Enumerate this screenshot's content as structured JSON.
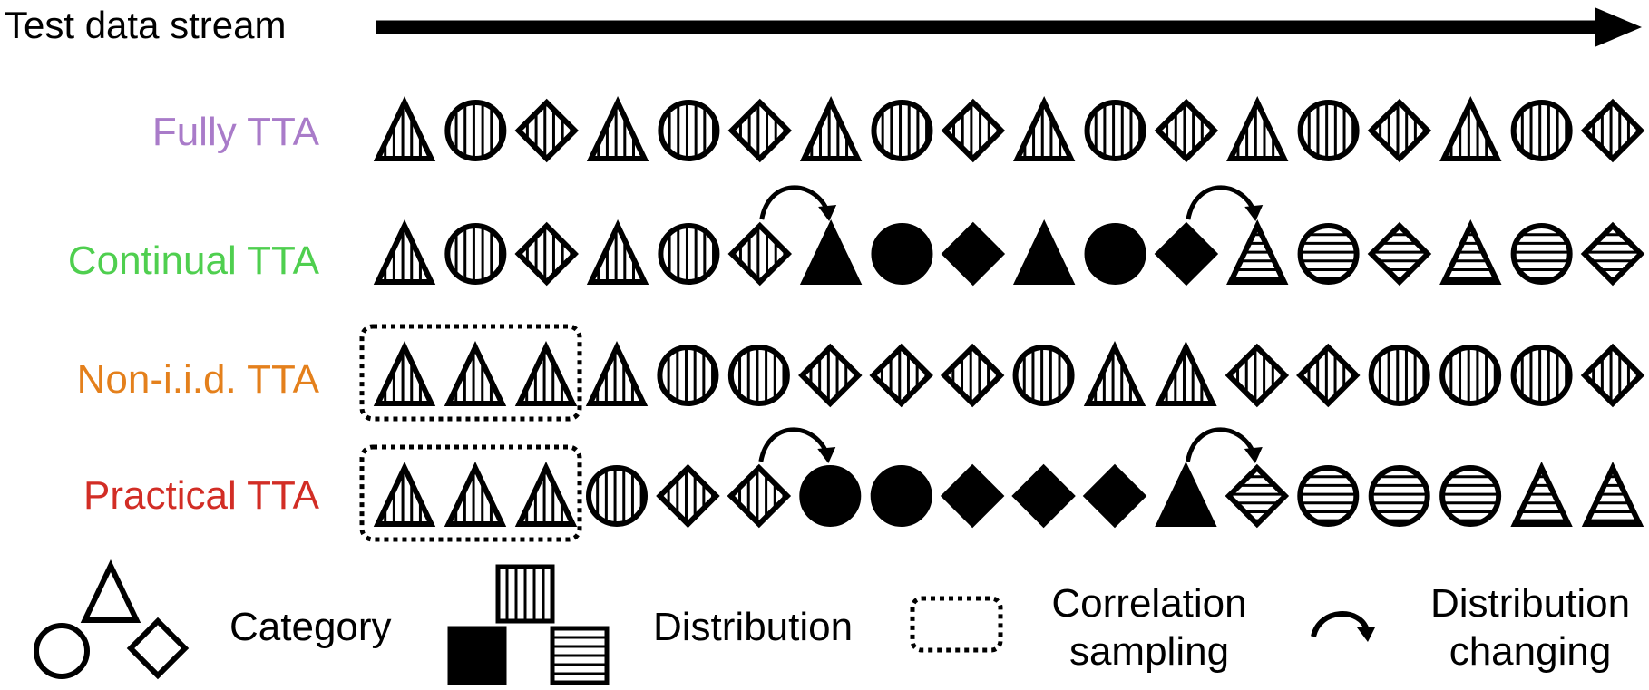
{
  "title": "Test data stream",
  "colors": {
    "stroke": "#000000",
    "fully": "#a97bc9",
    "continual": "#4fcf4f",
    "noniid": "#e4801c",
    "practical": "#d22d25"
  },
  "rows": [
    {
      "key": "fully",
      "label": "Fully TTA",
      "color_key": "fully",
      "items": [
        {
          "shape": "triangle",
          "fill": "vertical"
        },
        {
          "shape": "circle",
          "fill": "vertical"
        },
        {
          "shape": "diamond",
          "fill": "vertical"
        },
        {
          "shape": "triangle",
          "fill": "vertical"
        },
        {
          "shape": "circle",
          "fill": "vertical"
        },
        {
          "shape": "diamond",
          "fill": "vertical"
        },
        {
          "shape": "triangle",
          "fill": "vertical"
        },
        {
          "shape": "circle",
          "fill": "vertical"
        },
        {
          "shape": "diamond",
          "fill": "vertical"
        },
        {
          "shape": "triangle",
          "fill": "vertical"
        },
        {
          "shape": "circle",
          "fill": "vertical"
        },
        {
          "shape": "diamond",
          "fill": "vertical"
        },
        {
          "shape": "triangle",
          "fill": "vertical"
        },
        {
          "shape": "circle",
          "fill": "vertical"
        },
        {
          "shape": "diamond",
          "fill": "vertical"
        },
        {
          "shape": "triangle",
          "fill": "vertical"
        },
        {
          "shape": "circle",
          "fill": "vertical"
        },
        {
          "shape": "diamond",
          "fill": "vertical"
        }
      ],
      "changes": [],
      "correlated_count": 0
    },
    {
      "key": "continual",
      "label": "Continual TTA",
      "color_key": "continual",
      "items": [
        {
          "shape": "triangle",
          "fill": "vertical"
        },
        {
          "shape": "circle",
          "fill": "vertical"
        },
        {
          "shape": "diamond",
          "fill": "vertical"
        },
        {
          "shape": "triangle",
          "fill": "vertical"
        },
        {
          "shape": "circle",
          "fill": "vertical"
        },
        {
          "shape": "diamond",
          "fill": "vertical"
        },
        {
          "shape": "triangle",
          "fill": "solid"
        },
        {
          "shape": "circle",
          "fill": "solid"
        },
        {
          "shape": "diamond",
          "fill": "solid"
        },
        {
          "shape": "triangle",
          "fill": "solid"
        },
        {
          "shape": "circle",
          "fill": "solid"
        },
        {
          "shape": "diamond",
          "fill": "solid"
        },
        {
          "shape": "triangle",
          "fill": "horizontal"
        },
        {
          "shape": "circle",
          "fill": "horizontal"
        },
        {
          "shape": "diamond",
          "fill": "horizontal"
        },
        {
          "shape": "triangle",
          "fill": "horizontal"
        },
        {
          "shape": "circle",
          "fill": "horizontal"
        },
        {
          "shape": "diamond",
          "fill": "horizontal"
        }
      ],
      "changes": [
        6,
        12
      ],
      "correlated_count": 0
    },
    {
      "key": "noniid",
      "label": "Non-i.i.d. TTA",
      "color_key": "noniid",
      "items": [
        {
          "shape": "triangle",
          "fill": "vertical"
        },
        {
          "shape": "triangle",
          "fill": "vertical"
        },
        {
          "shape": "triangle",
          "fill": "vertical"
        },
        {
          "shape": "triangle",
          "fill": "vertical"
        },
        {
          "shape": "circle",
          "fill": "vertical"
        },
        {
          "shape": "circle",
          "fill": "vertical"
        },
        {
          "shape": "diamond",
          "fill": "vertical"
        },
        {
          "shape": "diamond",
          "fill": "vertical"
        },
        {
          "shape": "diamond",
          "fill": "vertical"
        },
        {
          "shape": "circle",
          "fill": "vertical"
        },
        {
          "shape": "triangle",
          "fill": "vertical"
        },
        {
          "shape": "triangle",
          "fill": "vertical"
        },
        {
          "shape": "diamond",
          "fill": "vertical"
        },
        {
          "shape": "diamond",
          "fill": "vertical"
        },
        {
          "shape": "circle",
          "fill": "vertical"
        },
        {
          "shape": "circle",
          "fill": "vertical"
        },
        {
          "shape": "circle",
          "fill": "vertical"
        },
        {
          "shape": "diamond",
          "fill": "vertical"
        }
      ],
      "changes": [],
      "correlated_count": 3
    },
    {
      "key": "practical",
      "label": "Practical  TTA",
      "color_key": "practical",
      "items": [
        {
          "shape": "triangle",
          "fill": "vertical"
        },
        {
          "shape": "triangle",
          "fill": "vertical"
        },
        {
          "shape": "triangle",
          "fill": "vertical"
        },
        {
          "shape": "circle",
          "fill": "vertical"
        },
        {
          "shape": "diamond",
          "fill": "vertical"
        },
        {
          "shape": "diamond",
          "fill": "vertical"
        },
        {
          "shape": "circle",
          "fill": "solid"
        },
        {
          "shape": "circle",
          "fill": "solid"
        },
        {
          "shape": "diamond",
          "fill": "solid"
        },
        {
          "shape": "diamond",
          "fill": "solid"
        },
        {
          "shape": "diamond",
          "fill": "solid"
        },
        {
          "shape": "triangle",
          "fill": "solid"
        },
        {
          "shape": "diamond",
          "fill": "horizontal"
        },
        {
          "shape": "circle",
          "fill": "horizontal"
        },
        {
          "shape": "circle",
          "fill": "horizontal"
        },
        {
          "shape": "circle",
          "fill": "horizontal"
        },
        {
          "shape": "triangle",
          "fill": "horizontal"
        },
        {
          "shape": "triangle",
          "fill": "horizontal"
        }
      ],
      "changes": [
        6,
        12
      ],
      "correlated_count": 3
    }
  ],
  "legend": {
    "category": "Category",
    "distribution": "Distribution",
    "correlation_line1": "Correlation",
    "correlation_line2": "sampling",
    "changing_line1": "Distribution",
    "changing_line2": "changing"
  }
}
